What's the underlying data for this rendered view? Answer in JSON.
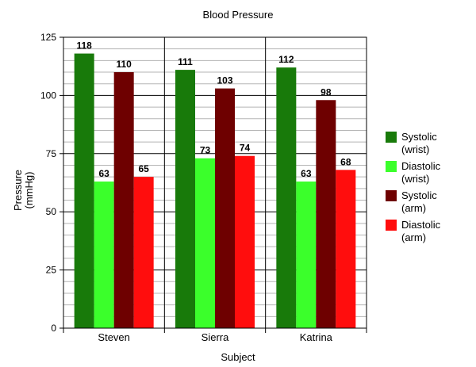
{
  "chart_data": {
    "type": "bar",
    "title": "Blood Pressure",
    "xlabel": "Subject",
    "ylabel_lines": [
      "Pressure",
      "(mmHg)"
    ],
    "categories": [
      "Steven",
      "Sierra",
      "Katrina"
    ],
    "ylim": [
      0,
      125
    ],
    "yticks": [
      0,
      25,
      50,
      75,
      100,
      125
    ],
    "minor_step": 5,
    "grid": true,
    "legend_position": "right",
    "series": [
      {
        "name_lines": [
          "Systolic",
          "(wrist)"
        ],
        "color": "#187a0a",
        "values": [
          118,
          111,
          112
        ]
      },
      {
        "name_lines": [
          "Diastolic",
          "(wrist)"
        ],
        "color": "#3bff2b",
        "values": [
          63,
          73,
          63
        ]
      },
      {
        "name_lines": [
          "Systolic",
          "(arm)"
        ],
        "color": "#6e0000",
        "values": [
          110,
          103,
          98
        ]
      },
      {
        "name_lines": [
          "Diastolic",
          "(arm)"
        ],
        "color": "#ff0d0d",
        "values": [
          65,
          74,
          68
        ]
      }
    ]
  }
}
